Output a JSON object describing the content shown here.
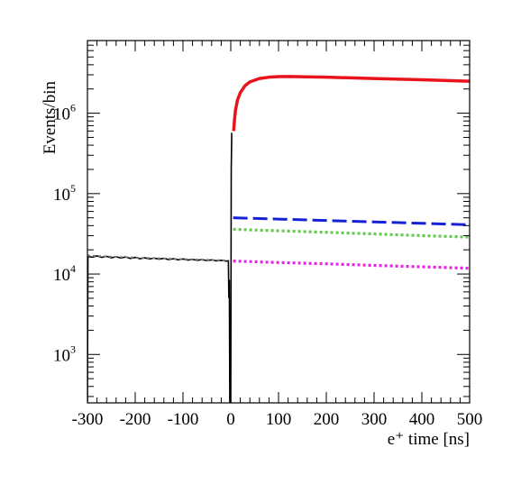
{
  "chart_data": {
    "type": "line",
    "title": "",
    "xlabel": "e⁺ time [ns]",
    "ylabel": "Events/bin",
    "xlim": [
      -300,
      500
    ],
    "ylim": [
      250,
      8000000
    ],
    "yscale": "log",
    "grid": false,
    "x_ticks": [
      {
        "value": -300,
        "label": "-300"
      },
      {
        "value": -200,
        "label": "-200"
      },
      {
        "value": -100,
        "label": "-100"
      },
      {
        "value": 0,
        "label": "0"
      },
      {
        "value": 100,
        "label": "100"
      },
      {
        "value": 200,
        "label": "200"
      },
      {
        "value": 300,
        "label": "300"
      },
      {
        "value": 400,
        "label": "400"
      },
      {
        "value": 500,
        "label": "500"
      }
    ],
    "y_ticks": [
      {
        "value": 1000,
        "base": "10",
        "exp": "3"
      },
      {
        "value": 10000,
        "base": "10",
        "exp": "4"
      },
      {
        "value": 100000,
        "base": "10",
        "exp": "5"
      },
      {
        "value": 1000000,
        "base": "10",
        "exp": "6"
      }
    ],
    "series": [
      {
        "style": "solid",
        "color": "#e8141c",
        "points": [
          [
            6,
            600000
          ],
          [
            8,
            850000
          ],
          [
            10,
            1100000
          ],
          [
            14,
            1450000
          ],
          [
            20,
            1800000
          ],
          [
            30,
            2200000
          ],
          [
            40,
            2450000
          ],
          [
            60,
            2700000
          ],
          [
            80,
            2800000
          ],
          [
            100,
            2850000
          ],
          [
            120,
            2860000
          ],
          [
            160,
            2830000
          ],
          [
            200,
            2800000
          ],
          [
            300,
            2700000
          ],
          [
            400,
            2600000
          ],
          [
            500,
            2500000
          ]
        ]
      },
      {
        "style": "dashed",
        "color": "#1421d6",
        "points": [
          [
            5,
            50000
          ],
          [
            100,
            48200
          ],
          [
            200,
            46300
          ],
          [
            300,
            44500
          ],
          [
            400,
            42700
          ],
          [
            500,
            41000
          ]
        ]
      },
      {
        "style": "dotted",
        "color": "#5fcc4a",
        "points": [
          [
            5,
            36000
          ],
          [
            100,
            34500
          ],
          [
            200,
            33000
          ],
          [
            300,
            31500
          ],
          [
            400,
            30000
          ],
          [
            500,
            28800
          ]
        ]
      },
      {
        "style": "dotted",
        "color": "#ee1fee",
        "points": [
          [
            5,
            14500
          ],
          [
            100,
            13900
          ],
          [
            200,
            13400
          ],
          [
            300,
            12800
          ],
          [
            400,
            12300
          ],
          [
            500,
            11800
          ]
        ]
      },
      {
        "style": "histogram",
        "color": "#000000",
        "points": [
          [
            -300,
            260
          ],
          [
            -299,
            16500
          ],
          [
            -290,
            16200
          ],
          [
            -280,
            16800
          ],
          [
            -270,
            16100
          ],
          [
            -260,
            16600
          ],
          [
            -250,
            15900
          ],
          [
            -240,
            16400
          ],
          [
            -230,
            15800
          ],
          [
            -220,
            16300
          ],
          [
            -210,
            15600
          ],
          [
            -200,
            16100
          ],
          [
            -190,
            15500
          ],
          [
            -180,
            15900
          ],
          [
            -170,
            15400
          ],
          [
            -160,
            15800
          ],
          [
            -150,
            15300
          ],
          [
            -140,
            15700
          ],
          [
            -130,
            15100
          ],
          [
            -120,
            15500
          ],
          [
            -110,
            15000
          ],
          [
            -100,
            15400
          ],
          [
            -90,
            14900
          ],
          [
            -80,
            15200
          ],
          [
            -70,
            14800
          ],
          [
            -60,
            15100
          ],
          [
            -50,
            14700
          ],
          [
            -40,
            15000
          ],
          [
            -30,
            14600
          ],
          [
            -20,
            14800
          ],
          [
            -10,
            14500
          ],
          [
            -5,
            14600
          ],
          [
            -4,
            5000
          ],
          [
            -3,
            8500
          ],
          [
            -2,
            250
          ],
          [
            0,
            250
          ],
          [
            1,
            200000
          ],
          [
            2,
            560000
          ],
          [
            3,
            560000
          ]
        ]
      },
      {
        "style": "dotted",
        "color": "#777777",
        "points": [
          [
            -300,
            17000
          ],
          [
            -250,
            16400
          ],
          [
            -200,
            16000
          ],
          [
            -150,
            15600
          ],
          [
            -100,
            15300
          ],
          [
            -50,
            15000
          ],
          [
            -5,
            14700
          ]
        ]
      }
    ]
  }
}
